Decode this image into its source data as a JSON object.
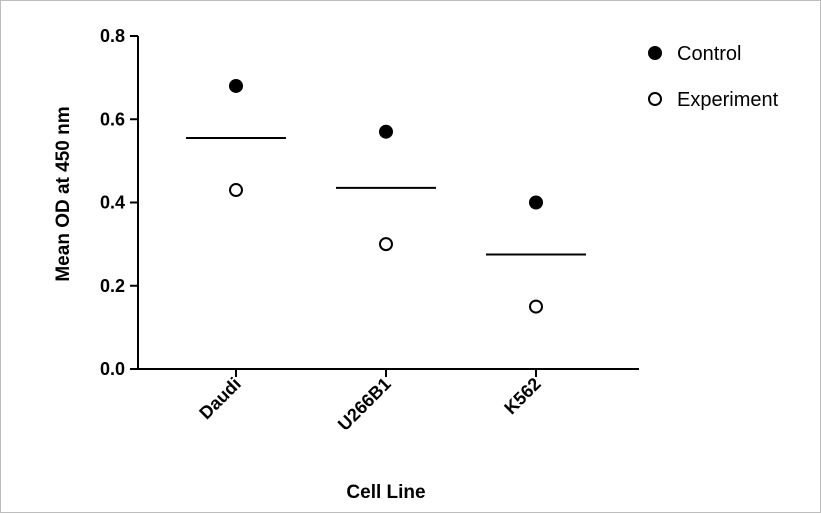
{
  "chart_data": {
    "type": "scatter",
    "xlabel": "Cell Line",
    "ylabel": "Mean OD at 450 nm",
    "categories": [
      "Daudi",
      "U266B1",
      "K562"
    ],
    "yticks": [
      "0.0",
      "0.2",
      "0.4",
      "0.6",
      "0.8"
    ],
    "ylim": [
      0,
      0.8
    ],
    "legend_position": "top-right",
    "series": [
      {
        "name": "Control",
        "marker": "filled-circle",
        "values": [
          0.68,
          0.57,
          0.4
        ]
      },
      {
        "name": "Experiment",
        "marker": "open-circle",
        "values": [
          0.43,
          0.3,
          0.15
        ]
      }
    ],
    "mean_lines": [
      0.555,
      0.435,
      0.275
    ],
    "colors": {
      "marker": "#000000",
      "mean_line": "#000000",
      "axis": "#000000"
    }
  }
}
